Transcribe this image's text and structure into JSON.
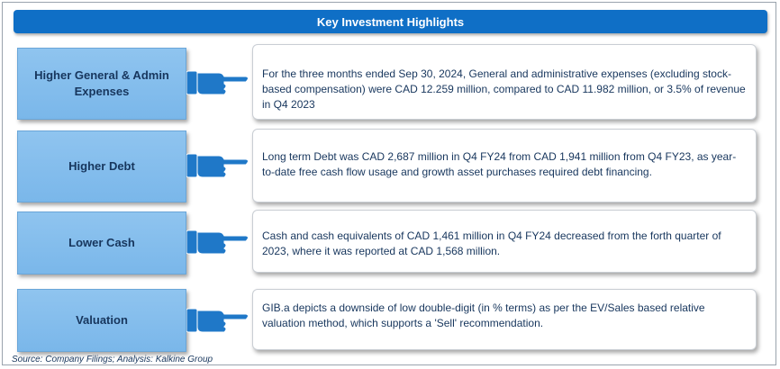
{
  "header": {
    "title": "Key Investment Highlights"
  },
  "highlights": [
    {
      "label": "Higher General & Admin\nExpenses",
      "text": "For the three months ended Sep 30, 2024, General and administrative expenses (excluding stock-based compensation) were CAD 12.259 million, compared to CAD 11.982 million, or 3.5% of revenue in Q4 2023"
    },
    {
      "label": "Higher  Debt",
      "text": "Long term Debt  was CAD 2,687 million in Q4 FY24 from CAD 1,941 million from Q4 FY23, as year-to-date free cash flow usage and growth asset purchases required debt financing."
    },
    {
      "label": "Lower Cash",
      "text": "Cash and cash equivalents of CAD 1,461 million  in Q4 FY24 decreased from  the forth  quarter of 2023, where it was reported at CAD 1,568 million."
    },
    {
      "label": "Valuation",
      "text": "GIB.a depicts a downside of low double-digit (in % terms) as per the EV/Sales based relative valuation method, which supports a 'Sell' recommendation."
    }
  ],
  "footer": {
    "source": "Source: Company Filings; Analysis: Kalkine Group"
  },
  "colors": {
    "header_bg": "#0f6fc6",
    "label_bg": "#8fc4ef",
    "text_color": "#17365d",
    "hand_color": "#1f78c8"
  },
  "icons": {
    "pointer": "pointing-hand-icon"
  }
}
